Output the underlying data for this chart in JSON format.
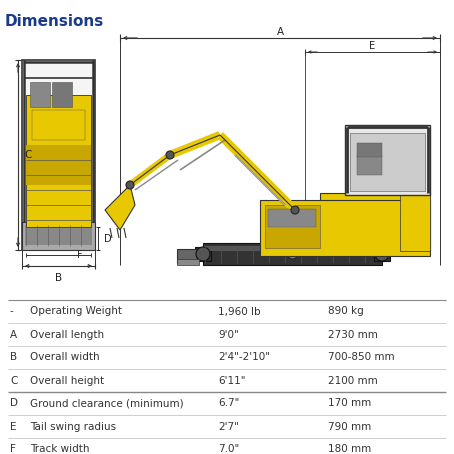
{
  "title": "Dimensions",
  "title_color": "#1a3a8c",
  "title_fontsize": 11,
  "table_rows": [
    [
      "-",
      "Operating Weight",
      "1,960 lb",
      "890 kg"
    ],
    [
      "A",
      "Overall length",
      "9'0\"",
      "2730 mm"
    ],
    [
      "B",
      "Overall width",
      "2'4\"-2'10\"",
      "700-850 mm"
    ],
    [
      "C",
      "Overall height",
      "6'11\"",
      "2100 mm"
    ],
    [
      "D",
      "Ground clearance (minimum)",
      "6.7\"",
      "170 mm"
    ],
    [
      "E",
      "Tail swing radius",
      "2'7\"",
      "790 mm"
    ],
    [
      "F",
      "Track width",
      "7.0\"",
      "180 mm"
    ]
  ],
  "font_size": 7.5,
  "line_color": "#bbbbbb",
  "heavy_line_color": "#888888",
  "text_color": "#333333",
  "bg_color": "#ffffff",
  "dim_line_color": "#333333",
  "yellow": "#e8c800",
  "dark_yellow": "#c8a800",
  "black": "#1a1a1a",
  "gray": "#888888",
  "light_gray": "#cccccc",
  "dark_gray": "#555555"
}
